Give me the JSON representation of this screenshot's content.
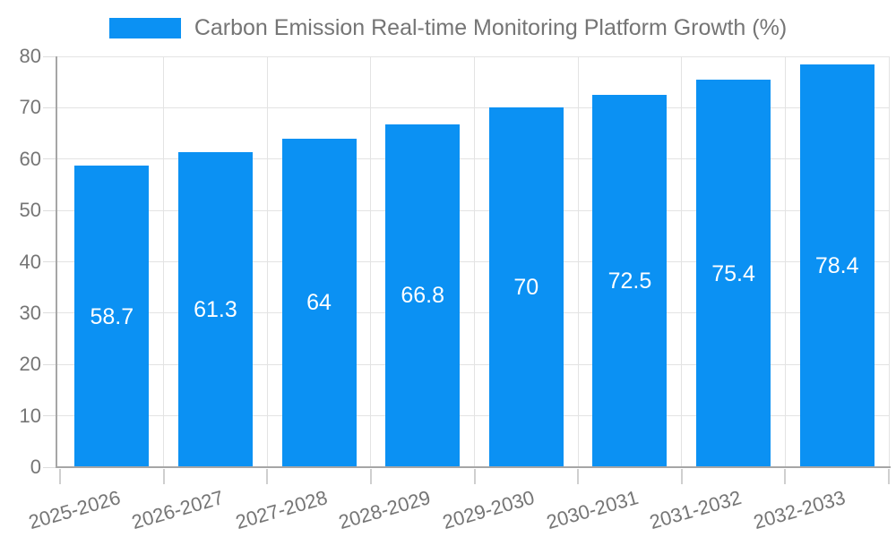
{
  "legend": {
    "label": "Carbon Emission Real-time Monitoring Platform Growth (%)"
  },
  "chart_data": {
    "type": "bar",
    "title": "Carbon Emission Real-time Monitoring Platform Growth (%)",
    "categories": [
      "2025-2026",
      "2026-2027",
      "2027-2028",
      "2028-2029",
      "2029-2030",
      "2030-2031",
      "2031-2032",
      "2032-2033"
    ],
    "series": [
      {
        "name": "Carbon Emission Real-time Monitoring Platform Growth (%)",
        "values": [
          58.7,
          61.3,
          64,
          66.8,
          70,
          72.5,
          75.4,
          78.4
        ]
      }
    ],
    "xlabel": "",
    "ylabel": "",
    "ylim": [
      0,
      80
    ],
    "yticks": [
      0,
      10,
      20,
      30,
      40,
      50,
      60,
      70,
      80
    ],
    "grid": true,
    "legend_position": "top-center",
    "x_label_rotation_deg": -16,
    "bar_value_labels_inside": true,
    "colors": {
      "bar": "#0B91F3",
      "value_label": "#FFFFFF",
      "axis_text": "#757575",
      "title_text": "#757575",
      "gridline": "#E3E3E3",
      "y_tick": "#DDDDDD",
      "x_tick": "#CFCFCF",
      "axis_line": "#A6A6A6"
    }
  }
}
